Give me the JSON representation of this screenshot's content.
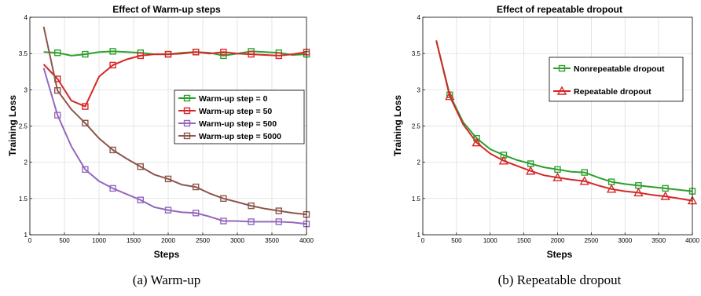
{
  "charts": [
    {
      "caption": "(a) Warm-up",
      "chart_data": {
        "type": "line",
        "title": "Effect of Warm-up steps",
        "xlabel": "Steps",
        "ylabel": "Training Loss",
        "xlim": [
          0,
          4000
        ],
        "ylim": [
          1,
          4
        ],
        "xticks": [
          0,
          500,
          1000,
          1500,
          2000,
          2500,
          3000,
          3500,
          4000
        ],
        "yticks": [
          1,
          1.5,
          2,
          2.5,
          3,
          3.5,
          4
        ],
        "grid": true,
        "legend": "middle-right",
        "series": [
          {
            "name": "Warm-up step = 0",
            "color": "#2ca02c",
            "marker": "square",
            "x": [
              200,
              400,
              600,
              800,
              1000,
              1200,
              1400,
              1600,
              1800,
              2000,
              2200,
              2400,
              2600,
              2800,
              3000,
              3200,
              3400,
              3600,
              3800,
              4000
            ],
            "y": [
              3.52,
              3.51,
              3.47,
              3.49,
              3.52,
              3.53,
              3.52,
              3.51,
              3.49,
              3.49,
              3.51,
              3.52,
              3.51,
              3.47,
              3.5,
              3.53,
              3.52,
              3.51,
              3.48,
              3.49
            ],
            "markers_x": [
              400,
              800,
              1200,
              1600,
              2000,
              2400,
              2800,
              3200,
              3600,
              4000
            ]
          },
          {
            "name": "Warm-up step = 50",
            "color": "#d62728",
            "marker": "square",
            "x": [
              200,
              400,
              600,
              800,
              1000,
              1200,
              1400,
              1600,
              1800,
              2000,
              2200,
              2400,
              2600,
              2800,
              3000,
              3200,
              3400,
              3600,
              3800,
              4000
            ],
            "y": [
              3.35,
              3.15,
              2.85,
              2.77,
              3.18,
              3.34,
              3.42,
              3.47,
              3.49,
              3.49,
              3.5,
              3.52,
              3.5,
              3.52,
              3.5,
              3.49,
              3.48,
              3.47,
              3.49,
              3.52
            ],
            "markers_x": [
              400,
              800,
              1200,
              1600,
              2000,
              2400,
              2800,
              3200,
              3600,
              4000
            ]
          },
          {
            "name": "Warm-up step = 500",
            "color": "#9467bd",
            "marker": "square",
            "x": [
              200,
              400,
              600,
              800,
              1000,
              1200,
              1400,
              1600,
              1800,
              2000,
              2200,
              2400,
              2600,
              2800,
              3000,
              3200,
              3400,
              3600,
              3800,
              4000
            ],
            "y": [
              3.3,
              2.65,
              2.22,
              1.9,
              1.74,
              1.64,
              1.56,
              1.48,
              1.38,
              1.34,
              1.31,
              1.3,
              1.25,
              1.19,
              1.19,
              1.18,
              1.18,
              1.18,
              1.17,
              1.15
            ],
            "markers_x": [
              400,
              800,
              1200,
              1600,
              2000,
              2400,
              2800,
              3200,
              3600,
              4000
            ]
          },
          {
            "name": "Warm-up step = 5000",
            "color": "#8c564b",
            "marker": "square",
            "x": [
              200,
              400,
              600,
              800,
              1000,
              1200,
              1400,
              1600,
              1800,
              2000,
              2200,
              2400,
              2600,
              2800,
              3000,
              3200,
              3400,
              3600,
              3800,
              4000
            ],
            "y": [
              3.87,
              2.99,
              2.73,
              2.54,
              2.33,
              2.17,
              2.05,
              1.94,
              1.83,
              1.77,
              1.69,
              1.66,
              1.57,
              1.5,
              1.45,
              1.4,
              1.36,
              1.33,
              1.3,
              1.28
            ],
            "markers_x": [
              400,
              800,
              1200,
              1600,
              2000,
              2400,
              2800,
              3200,
              3600,
              4000
            ]
          }
        ]
      }
    },
    {
      "caption": "(b) Repeatable dropout",
      "chart_data": {
        "type": "line",
        "title": "Effect of repeatable dropout",
        "xlabel": "Steps",
        "ylabel": "Training Loss",
        "xlim": [
          0,
          4000
        ],
        "ylim": [
          1,
          4
        ],
        "xticks": [
          0,
          500,
          1000,
          1500,
          2000,
          2500,
          3000,
          3500,
          4000
        ],
        "yticks": [
          1,
          1.5,
          2,
          2.5,
          3,
          3.5,
          4
        ],
        "grid": true,
        "legend": "top-right",
        "series": [
          {
            "name": "Nonrepeatable dropout",
            "color": "#2ca02c",
            "marker": "square",
            "x": [
              200,
              400,
              600,
              800,
              1000,
              1200,
              1400,
              1600,
              1800,
              2000,
              2200,
              2400,
              2600,
              2800,
              3000,
              3200,
              3400,
              3600,
              3800,
              4000
            ],
            "y": [
              3.68,
              2.93,
              2.55,
              2.33,
              2.18,
              2.1,
              2.03,
              1.98,
              1.93,
              1.9,
              1.87,
              1.86,
              1.79,
              1.73,
              1.7,
              1.68,
              1.66,
              1.64,
              1.62,
              1.6
            ],
            "markers_x": [
              400,
              800,
              1200,
              1600,
              2000,
              2400,
              2800,
              3200,
              3600,
              4000
            ]
          },
          {
            "name": "Repeatable dropout",
            "color": "#d62728",
            "marker": "triangle",
            "x": [
              200,
              400,
              600,
              800,
              1000,
              1200,
              1400,
              1600,
              1800,
              2000,
              2200,
              2400,
              2600,
              2800,
              3000,
              3200,
              3400,
              3600,
              3800,
              4000
            ],
            "y": [
              3.68,
              2.91,
              2.52,
              2.27,
              2.12,
              2.02,
              1.95,
              1.88,
              1.82,
              1.79,
              1.76,
              1.74,
              1.68,
              1.63,
              1.6,
              1.58,
              1.55,
              1.53,
              1.5,
              1.47
            ],
            "markers_x": [
              400,
              800,
              1200,
              1600,
              2000,
              2400,
              2800,
              3200,
              3600,
              4000
            ]
          }
        ]
      }
    }
  ]
}
